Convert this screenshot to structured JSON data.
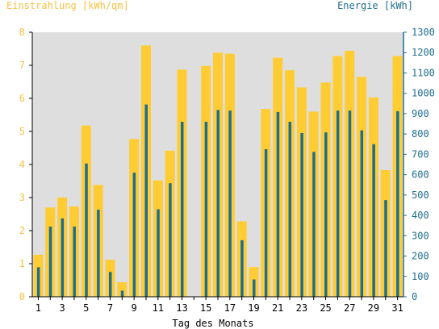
{
  "colors": {
    "irradiation": "#ffcc33",
    "energy": "#1a6e94",
    "plot_bg": "#dedede",
    "left_axis_text": "#f5c242",
    "right_axis_text": "#1f6f8f"
  },
  "chart_data": {
    "type": "bar",
    "x_ticks": [
      "1",
      "3",
      "5",
      "7",
      "9",
      "11",
      "13",
      "15",
      "17",
      "19",
      "21",
      "23",
      "25",
      "27",
      "29",
      "31"
    ],
    "xlabel": "Tag des Monats",
    "y_left": {
      "label": "Einstrahlung [kWh/qm]",
      "ticks": [
        "0",
        "1",
        "2",
        "3",
        "4",
        "5",
        "6",
        "7",
        "8"
      ],
      "lim": [
        0,
        8
      ]
    },
    "y_right": {
      "label": "Energie [kWh]",
      "ticks": [
        "0",
        "100",
        "200",
        "300",
        "400",
        "500",
        "600",
        "700",
        "800",
        "900",
        "1000",
        "1100",
        "1200",
        "1300"
      ],
      "lim": [
        0,
        1300
      ]
    },
    "x": [
      1,
      2,
      3,
      4,
      5,
      6,
      7,
      8,
      9,
      10,
      11,
      12,
      13,
      14,
      15,
      16,
      17,
      18,
      19,
      20,
      21,
      22,
      23,
      24,
      25,
      26,
      27,
      28,
      29,
      30,
      31
    ],
    "series": [
      {
        "name": "Einstrahlung [kWh/qm]",
        "axis": "left",
        "values": [
          1.27,
          2.7,
          3.0,
          2.73,
          5.18,
          3.38,
          1.12,
          0.44,
          4.77,
          7.6,
          3.52,
          4.42,
          6.87,
          0,
          6.98,
          7.38,
          7.35,
          2.28,
          0.9,
          5.68,
          7.23,
          6.85,
          6.33,
          5.6,
          6.48,
          7.28,
          7.44,
          6.65,
          6.03,
          3.83,
          7.28
        ]
      },
      {
        "name": "Energie [kWh]",
        "axis": "right",
        "values": [
          145,
          345,
          385,
          345,
          655,
          428,
          122,
          30,
          610,
          945,
          430,
          558,
          860,
          0,
          860,
          918,
          915,
          278,
          85,
          725,
          908,
          860,
          805,
          712,
          808,
          915,
          915,
          818,
          750,
          475,
          912
        ]
      }
    ]
  }
}
